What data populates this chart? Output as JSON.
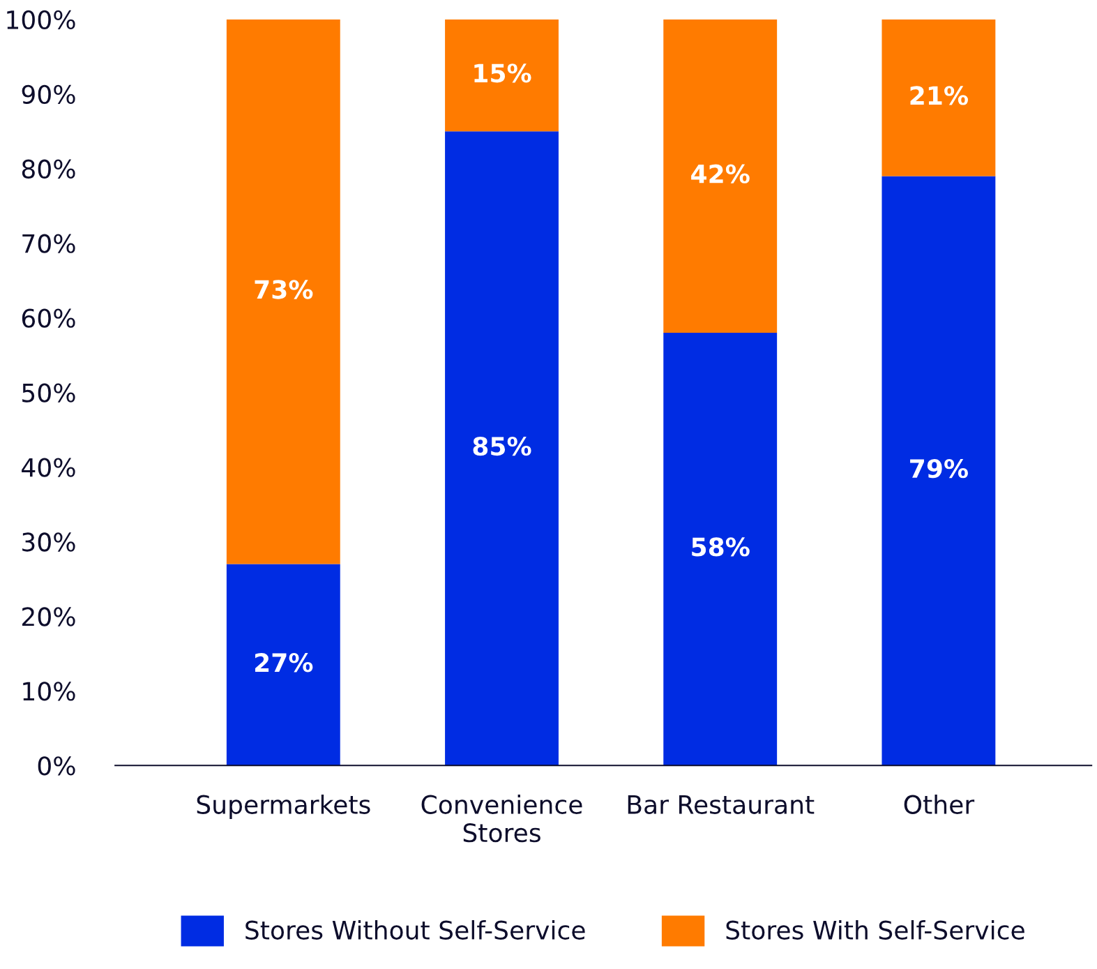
{
  "chart_data": {
    "type": "bar",
    "stacked": true,
    "categories": [
      "Supermarkets",
      "Convenience\nStores",
      "Bar Restaurant",
      "Other"
    ],
    "series": [
      {
        "name": "Stores Without Self-Service",
        "color": "#002ce3",
        "values": [
          27,
          85,
          58,
          79
        ]
      },
      {
        "name": "Stores With Self-Service",
        "color": "#ff7b00",
        "values": [
          73,
          15,
          42,
          21
        ]
      }
    ],
    "ylim": [
      0,
      100
    ],
    "yticks": [
      {
        "value": 0,
        "label": "0%"
      },
      {
        "value": 10,
        "label": "10%"
      },
      {
        "value": 20,
        "label": "20%"
      },
      {
        "value": 30,
        "label": "30%"
      },
      {
        "value": 40,
        "label": "40%"
      },
      {
        "value": 50,
        "label": "50%"
      },
      {
        "value": 60,
        "label": "60%"
      },
      {
        "value": 70,
        "label": "70%"
      },
      {
        "value": 80,
        "label": "80%"
      },
      {
        "value": 90,
        "label": "90%"
      },
      {
        "value": 100,
        "label": "100%"
      }
    ],
    "value_labels": [
      [
        "27%",
        "85%",
        "58%",
        "79%"
      ],
      [
        "73%",
        "15%",
        "42%",
        "21%"
      ]
    ],
    "grid": false,
    "legend": "bottom"
  }
}
